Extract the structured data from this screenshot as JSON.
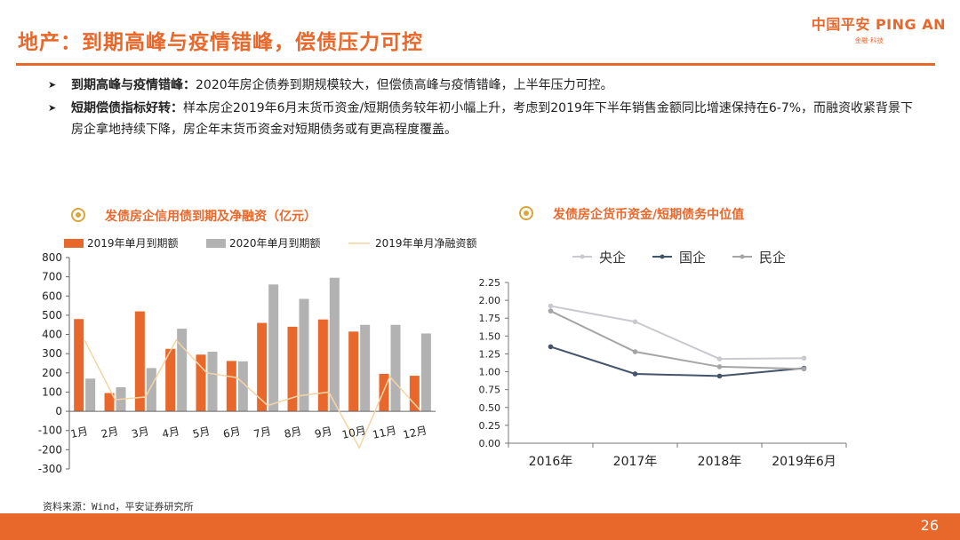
{
  "title": "地产：到期高峰与疫情错峰，偿债压力可控",
  "logo": {
    "main": "中国平安 PING AN",
    "sub": "金融·科技"
  },
  "bullets": [
    {
      "marker": "➤",
      "bold": "到期高峰与疫情错峰：",
      "text": "2020年房企债券到期规模较大，但偿债高峰与疫情错峰，上半年压力可控。"
    },
    {
      "marker": "➤",
      "bold": "短期偿债指标好转：",
      "text": "样本房企2019年6月末货币资金/短期债务较年初小幅上升，考虑到2019年下半年销售金额同比增速保持在6-7%，而融资收紧背景下房企拿地持续下降，房企年末货币资金对短期债务或有更高程度覆盖。"
    }
  ],
  "source": "资料来源：Wind，平安证券研究所",
  "page_number": "26",
  "colors": {
    "accent": "#e8682c",
    "bar2020": "#b2b2b2",
    "net_line": "#f4d4a6"
  },
  "chart_data": [
    {
      "type": "bar",
      "title": "发债房企信用债到期及净融资（亿元）",
      "categories": [
        "1月",
        "2月",
        "3月",
        "4月",
        "5月",
        "6月",
        "7月",
        "8月",
        "9月",
        "10月",
        "11月",
        "12月"
      ],
      "ylim": [
        -300,
        800
      ],
      "yticks": [
        800,
        700,
        600,
        500,
        400,
        300,
        200,
        100,
        0,
        -100,
        -200,
        -300
      ],
      "series": [
        {
          "name": "2019年单月到期额",
          "kind": "bar",
          "color": "#e8682c",
          "values": [
            480,
            95,
            520,
            325,
            295,
            262,
            460,
            440,
            478,
            415,
            195,
            185
          ]
        },
        {
          "name": "2020年单月到期额",
          "kind": "bar",
          "color": "#b2b2b2",
          "values": [
            170,
            125,
            225,
            430,
            310,
            260,
            660,
            585,
            695,
            450,
            450,
            405
          ]
        },
        {
          "name": "2019年单月净融资额",
          "kind": "line",
          "color": "#f4d4a6",
          "values": [
            370,
            60,
            75,
            370,
            200,
            175,
            30,
            80,
            100,
            -190,
            180,
            5
          ]
        }
      ]
    },
    {
      "type": "line",
      "title": "发债房企货币资金/短期债务中位值",
      "categories": [
        "2016年",
        "2017年",
        "2018年",
        "2019年6月"
      ],
      "ylim": [
        0,
        2.25
      ],
      "yticks": [
        "2.25",
        "2.00",
        "1.75",
        "1.50",
        "1.25",
        "1.00",
        "0.75",
        "0.50",
        "0.25",
        "0.00"
      ],
      "series": [
        {
          "name": "央企",
          "color": "#c9c9cf",
          "values": [
            1.92,
            1.7,
            1.18,
            1.19
          ]
        },
        {
          "name": "国企",
          "color": "#44546a",
          "values": [
            1.35,
            0.97,
            0.94,
            1.05
          ]
        },
        {
          "name": "民企",
          "color": "#a5a5a5",
          "values": [
            1.85,
            1.28,
            1.07,
            1.04
          ]
        }
      ]
    }
  ]
}
